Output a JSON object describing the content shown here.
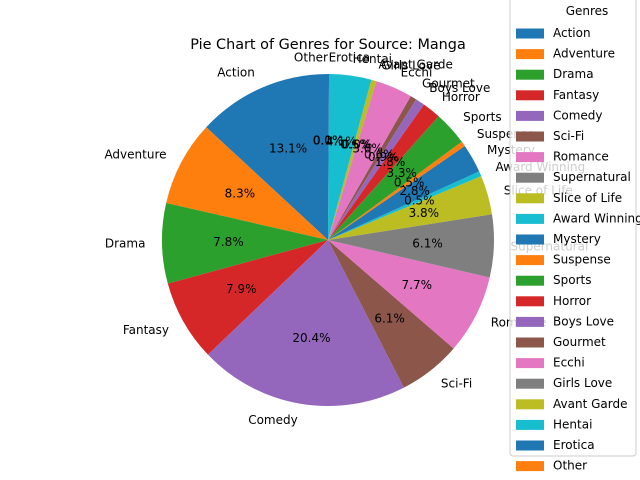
{
  "chart_data": {
    "type": "pie",
    "title": "Pie Chart of Genres for Source: Manga",
    "legend": {
      "title": "Genres",
      "placement": "right"
    },
    "start_angle": 90,
    "direction": "counterclockwise",
    "slices": [
      {
        "label": "Action",
        "percent": 13.1,
        "pct_label": "13.1%",
        "color": "#1f77b4"
      },
      {
        "label": "Adventure",
        "percent": 8.3,
        "pct_label": "8.3%",
        "color": "#ff7f0e"
      },
      {
        "label": "Drama",
        "percent": 7.8,
        "pct_label": "7.8%",
        "color": "#2ca02c"
      },
      {
        "label": "Fantasy",
        "percent": 7.9,
        "pct_label": "7.9%",
        "color": "#d62728"
      },
      {
        "label": "Comedy",
        "percent": 20.4,
        "pct_label": "20.4%",
        "color": "#9467bd"
      },
      {
        "label": "Sci-Fi",
        "percent": 6.1,
        "pct_label": "6.1%",
        "color": "#8c564b"
      },
      {
        "label": "Romance",
        "percent": 7.7,
        "pct_label": "7.7%",
        "color": "#e377c2"
      },
      {
        "label": "Supernatural",
        "percent": 6.1,
        "pct_label": "6.1%",
        "color": "#7f7f7f"
      },
      {
        "label": "Slice of Life",
        "percent": 3.8,
        "pct_label": "3.8%",
        "color": "#bcbd22"
      },
      {
        "label": "Award Winning",
        "percent": 0.5,
        "pct_label": "0.5%",
        "color": "#17becf"
      },
      {
        "label": "Mystery",
        "percent": 2.8,
        "pct_label": "2.8%",
        "color": "#1f77b4"
      },
      {
        "label": "Suspense",
        "percent": 0.5,
        "pct_label": "0.5%",
        "color": "#ff7f0e"
      },
      {
        "label": "Sports",
        "percent": 3.3,
        "pct_label": "3.3%",
        "color": "#2ca02c"
      },
      {
        "label": "Horror",
        "percent": 1.8,
        "pct_label": "1.8%",
        "color": "#d62728"
      },
      {
        "label": "Boys Love",
        "percent": 0.9,
        "pct_label": "0.9%",
        "color": "#9467bd"
      },
      {
        "label": "Gourmet",
        "percent": 0.6,
        "pct_label": "0.6%",
        "color": "#8c564b"
      },
      {
        "label": "Ecchi",
        "percent": 3.6,
        "pct_label": "3.6%",
        "color": "#e377c2"
      },
      {
        "label": "Girls Love",
        "percent": 0.0,
        "pct_label": "0.0%",
        "color": "#7f7f7f"
      },
      {
        "label": "Avant Garde",
        "percent": 0.5,
        "pct_label": "0.5%",
        "color": "#bcbd22"
      },
      {
        "label": "Hentai",
        "percent": 4.1,
        "pct_label": "4.1%",
        "color": "#17becf"
      },
      {
        "label": "Erotica",
        "percent": 0.1,
        "pct_label": "0.1%",
        "color": "#1f77b4"
      },
      {
        "label": "Other",
        "percent": 0.0,
        "pct_label": "0.0%",
        "color": "#ff7f0e"
      }
    ]
  }
}
